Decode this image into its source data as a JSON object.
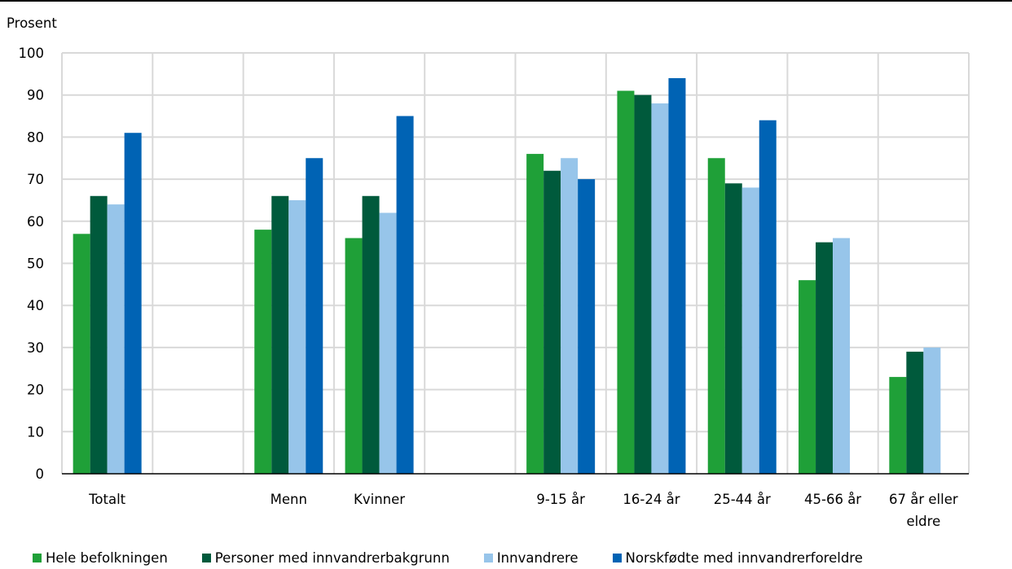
{
  "chart_data": {
    "type": "bar",
    "title": "",
    "ylabel": "Prosent",
    "xlabel": "",
    "ylim": [
      0,
      100
    ],
    "yticks": [
      "0",
      "10",
      "20",
      "30",
      "40",
      "50",
      "60",
      "70",
      "80",
      "90",
      "100"
    ],
    "grid": true,
    "legend_position": "bottom",
    "categories": [
      "Totalt",
      "",
      "Menn",
      "Kvinner",
      "",
      "9-15 år",
      "16-24 år",
      "25-44 år",
      "45-66 år",
      "67 år eller eldre"
    ],
    "category_lines": [
      [
        "Totalt"
      ],
      [],
      [
        "Menn"
      ],
      [
        "Kvinner"
      ],
      [],
      [
        "9-15 år"
      ],
      [
        "16-24 år"
      ],
      [
        "25-44 år"
      ],
      [
        "45-66 år"
      ],
      [
        "67 år eller",
        "eldre"
      ]
    ],
    "series": [
      {
        "name": "Hele befolkningen",
        "color": "#1fa038",
        "values": [
          57,
          null,
          58,
          56,
          null,
          76,
          91,
          75,
          46,
          23
        ]
      },
      {
        "name": "Personer med innvandrerbakgrunn",
        "color": "#005a3c",
        "values": [
          66,
          null,
          66,
          66,
          null,
          72,
          90,
          69,
          55,
          29
        ]
      },
      {
        "name": "Innvandrere",
        "color": "#97c5ea",
        "values": [
          64,
          null,
          65,
          62,
          null,
          75,
          88,
          68,
          56,
          30
        ]
      },
      {
        "name": "Norskfødte med innvandrerforeldre",
        "color": "#0063b4",
        "values": [
          81,
          null,
          75,
          85,
          null,
          70,
          94,
          84,
          null,
          null
        ]
      }
    ]
  }
}
